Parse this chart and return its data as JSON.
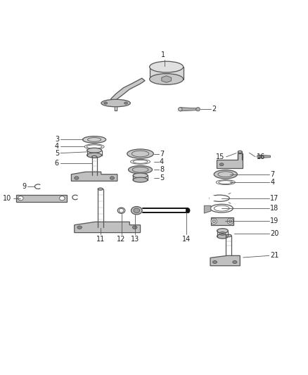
{
  "bg_color": "#ffffff",
  "line_color": "#555555",
  "part_color": "#888888",
  "dark_color": "#111111",
  "label_color": "#222222",
  "fig_width": 4.38,
  "fig_height": 5.33,
  "dpi": 100
}
